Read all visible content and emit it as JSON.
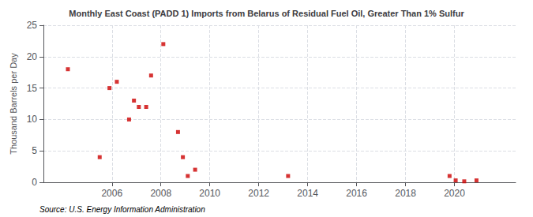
{
  "chart_data": {
    "type": "scatter",
    "title": "Monthly East Coast (PADD 1) Imports from Belarus of Residual Fuel Oil, Greater Than 1% Sulfur",
    "ylabel": "Thousand Barrels per Day",
    "source": "Source: U.S. Energy Information Administration",
    "x": [
      2004.2,
      2005.5,
      2005.9,
      2006.2,
      2006.7,
      2006.9,
      2007.1,
      2007.4,
      2007.6,
      2008.1,
      2008.7,
      2008.9,
      2009.1,
      2009.4,
      2013.2,
      2019.8,
      2020.05,
      2020.4,
      2020.9
    ],
    "values": [
      18,
      4,
      15,
      16,
      10,
      13,
      12,
      12,
      17,
      22,
      8,
      4,
      1,
      2,
      1,
      1,
      0.3,
      0.15,
      0.3
    ],
    "color": "#cc0000",
    "marker": "square",
    "xlim": [
      2003.2,
      2022.5
    ],
    "xticks": [
      2006,
      2008,
      2010,
      2012,
      2014,
      2016,
      2018,
      2020
    ],
    "ylim": [
      0,
      25
    ],
    "yticks": [
      0,
      5,
      10,
      15,
      20,
      25
    ],
    "grid": true
  }
}
